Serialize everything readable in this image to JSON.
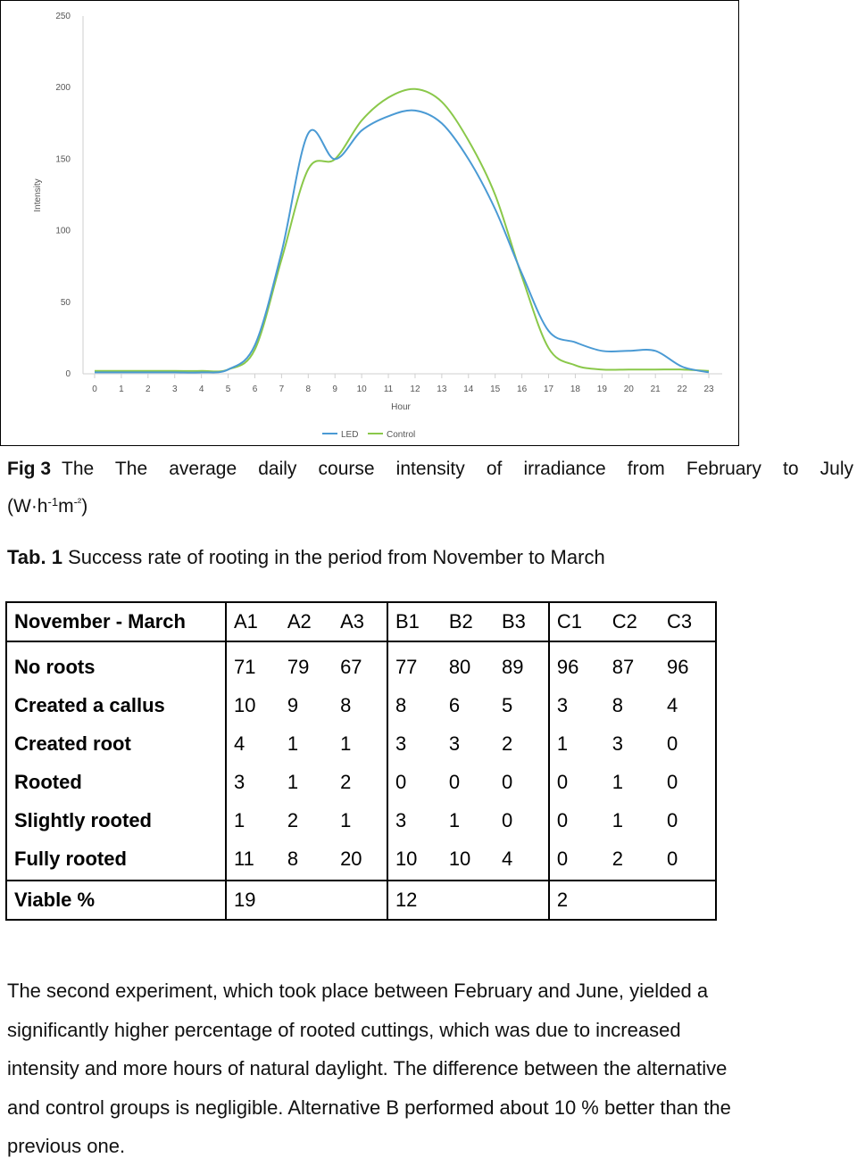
{
  "chart_data": {
    "type": "line",
    "title": "",
    "xlabel": "Hour",
    "ylabel": "Intensity",
    "x": [
      0,
      1,
      2,
      3,
      4,
      5,
      6,
      7,
      8,
      9,
      10,
      11,
      12,
      13,
      14,
      15,
      16,
      17,
      18,
      19,
      20,
      21,
      22,
      23
    ],
    "ylim": [
      0,
      250
    ],
    "yticks": [
      0,
      50,
      100,
      150,
      200,
      250
    ],
    "grid": false,
    "legend_position": "bottom",
    "series": [
      {
        "name": "LED",
        "color": "#4a9ad4",
        "values": [
          1,
          1,
          1,
          1,
          1,
          3,
          20,
          85,
          168,
          150,
          170,
          180,
          184,
          175,
          150,
          115,
          70,
          30,
          22,
          16,
          16,
          16,
          5,
          1
        ]
      },
      {
        "name": "Control",
        "color": "#8ac84a",
        "values": [
          2,
          2,
          2,
          2,
          2,
          3,
          17,
          80,
          143,
          150,
          177,
          193,
          199,
          190,
          163,
          125,
          68,
          18,
          6,
          3,
          3,
          3,
          3,
          2
        ]
      }
    ]
  },
  "figure": {
    "label": "Fig 3",
    "caption_line1": "The The average daily course intensity of irradiance from February to July",
    "unit_open": "(W·h",
    "unit_exp1": "-1",
    "unit_mid": "m",
    "unit_exp2": "-²",
    "unit_close": ")"
  },
  "table_caption": {
    "label": "Tab. 1",
    "text": "Success rate of rooting in the period from November to March"
  },
  "table": {
    "row_header": "November - March",
    "columns": [
      "A1",
      "A2",
      "A3",
      "B1",
      "B2",
      "B3",
      "C1",
      "C2",
      "C3"
    ],
    "rows": [
      {
        "label": "No roots",
        "values": [
          "71",
          "79",
          "67",
          "77",
          "80",
          "89",
          "96",
          "87",
          "96"
        ]
      },
      {
        "label": "Created a callus",
        "values": [
          "10",
          "9",
          "8",
          "8",
          "6",
          "5",
          "3",
          "8",
          "4"
        ]
      },
      {
        "label": "Created root",
        "values": [
          "4",
          "1",
          "1",
          "3",
          "3",
          "2",
          "1",
          "3",
          "0"
        ]
      },
      {
        "label": "Rooted",
        "values": [
          "3",
          "1",
          "2",
          "0",
          "0",
          "0",
          "0",
          "1",
          "0"
        ]
      },
      {
        "label": "Slightly rooted",
        "values": [
          "1",
          "2",
          "1",
          "3",
          "1",
          "0",
          "0",
          "1",
          "0"
        ]
      },
      {
        "label": "Fully rooted",
        "values": [
          "11",
          "8",
          "20",
          "10",
          "10",
          "4",
          "0",
          "2",
          "0"
        ]
      }
    ],
    "viable": {
      "label": "Viable %",
      "A": "19",
      "B": "12",
      "C": "2"
    }
  },
  "paragraph": {
    "lines": [
      "The second experiment, which took place between February and June, yielded a",
      "significantly higher percentage of rooted cuttings, which was due to increased",
      "intensity and more hours of natural daylight. The difference between the alternative",
      "and control groups is negligible. Alternative B performed about 10 % better than the",
      "previous one."
    ]
  }
}
